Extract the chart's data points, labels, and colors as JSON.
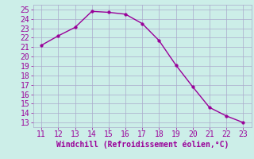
{
  "x": [
    11,
    12,
    13,
    14,
    15,
    16,
    17,
    18,
    19,
    20,
    21,
    22,
    23
  ],
  "y": [
    21.2,
    22.2,
    23.1,
    24.8,
    24.7,
    24.5,
    23.5,
    21.7,
    19.1,
    16.8,
    14.6,
    13.7,
    13.0
  ],
  "line_color": "#990099",
  "marker_color": "#990099",
  "bg_color": "#cceee8",
  "grid_color": "#aaaacc",
  "xlabel": "Windchill (Refroidissement éolien,°C)",
  "xlim": [
    10.5,
    23.5
  ],
  "ylim": [
    12.5,
    25.5
  ],
  "xticks": [
    11,
    12,
    13,
    14,
    15,
    16,
    17,
    18,
    19,
    20,
    21,
    22,
    23
  ],
  "yticks": [
    13,
    14,
    15,
    16,
    17,
    18,
    19,
    20,
    21,
    22,
    23,
    24,
    25
  ],
  "tick_color": "#990099",
  "label_color": "#990099",
  "font_size": 7.0
}
